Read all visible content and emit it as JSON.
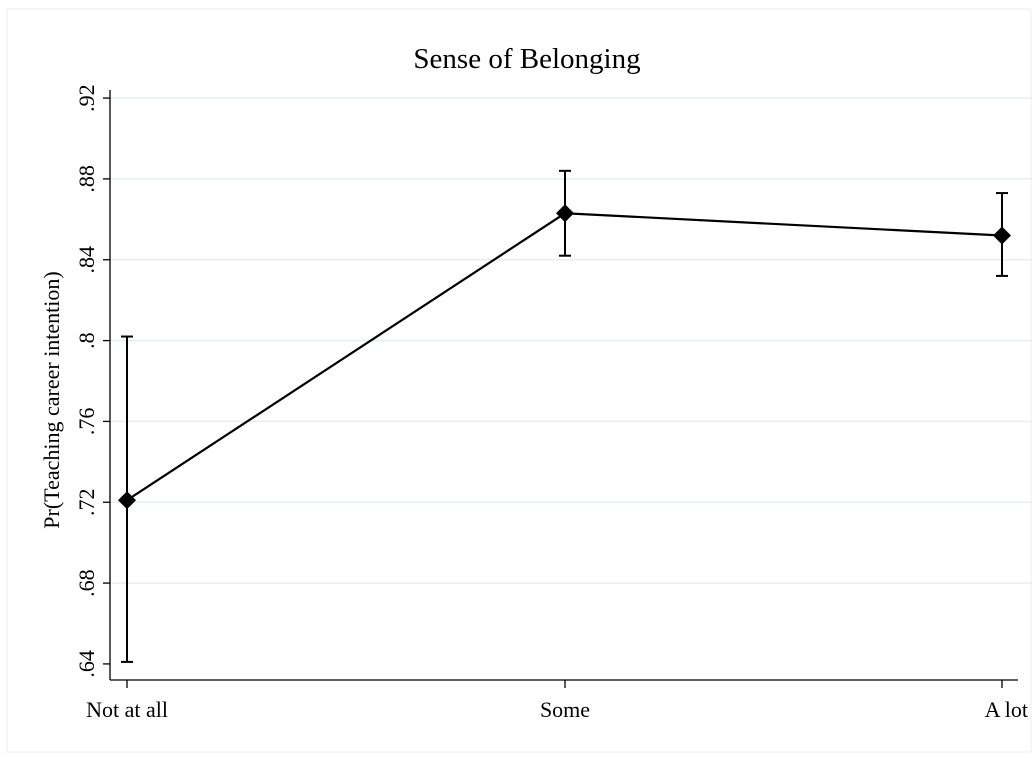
{
  "chart_data": {
    "type": "line",
    "title": "Sense of Belonging",
    "xlabel": "",
    "ylabel": "Pr(Teaching career intention)",
    "categories": [
      "Not at all",
      "Some",
      "A lot"
    ],
    "ylim": [
      0.636,
      0.924
    ],
    "yticks": [
      {
        "value": 0.64,
        "label": ".64"
      },
      {
        "value": 0.68,
        "label": ".68"
      },
      {
        "value": 0.72,
        "label": ".72"
      },
      {
        "value": 0.76,
        "label": ".76"
      },
      {
        "value": 0.8,
        "label": ".8"
      },
      {
        "value": 0.84,
        "label": ".84"
      },
      {
        "value": 0.88,
        "label": ".88"
      },
      {
        "value": 0.92,
        "label": ".92"
      }
    ],
    "grid": true,
    "legend": "none",
    "series": [
      {
        "values": [
          0.721,
          0.863,
          0.852
        ],
        "ci_low": [
          0.641,
          0.842,
          0.832
        ],
        "ci_high": [
          0.802,
          0.884,
          0.873
        ],
        "marker": "diamond",
        "color": "#000000"
      }
    ]
  }
}
